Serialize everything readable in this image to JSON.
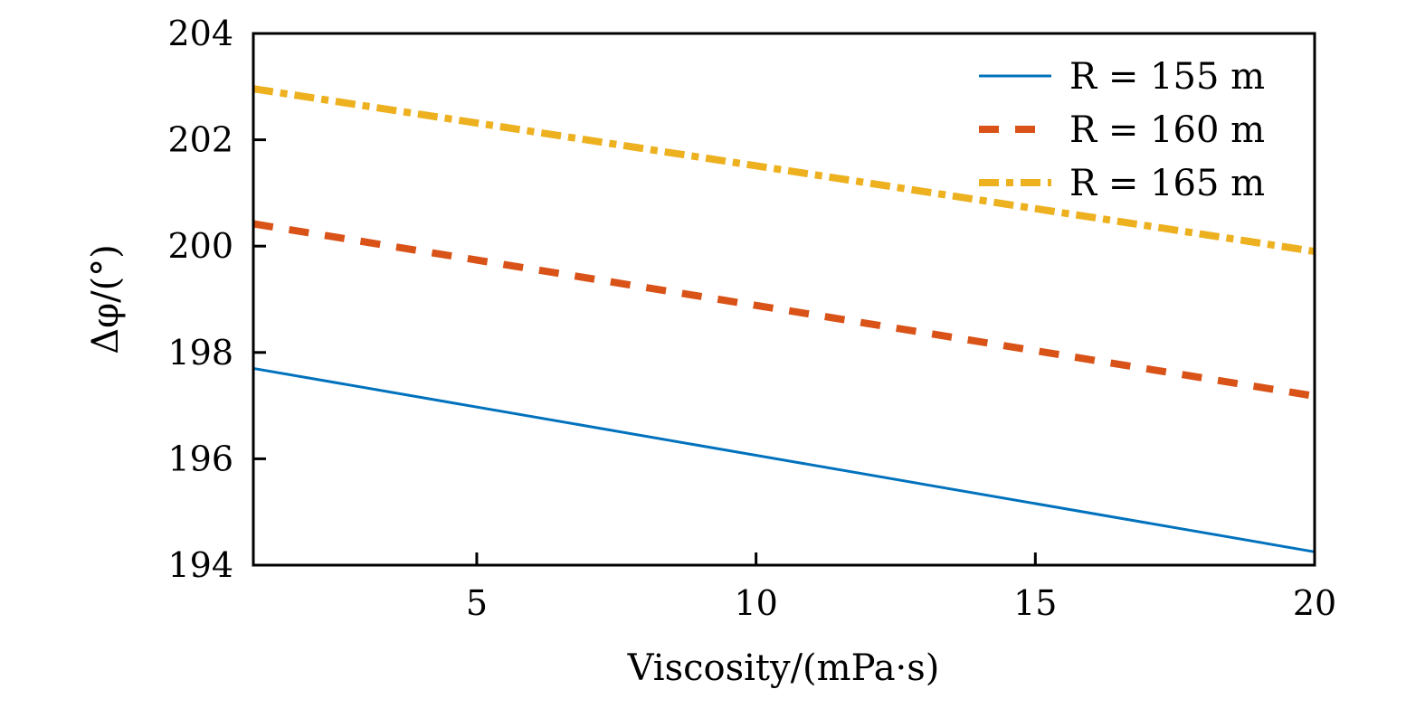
{
  "chart_data": {
    "type": "line",
    "title": "",
    "xlabel": "Viscosity/(mPa·s)",
    "ylabel": "Δφ/(°)",
    "xlim": [
      1,
      20
    ],
    "ylim": [
      194,
      204
    ],
    "xticks": [
      5,
      10,
      15,
      20
    ],
    "yticks": [
      194,
      196,
      198,
      200,
      202,
      204
    ],
    "grid": false,
    "legend_position": "top-right",
    "series": [
      {
        "name": "R = 155 m",
        "color": "#0072BD",
        "style": "solid",
        "x": [
          1,
          20
        ],
        "y": [
          197.7,
          194.25
        ]
      },
      {
        "name": "R = 160 m",
        "color": "#D95319",
        "style": "dashed",
        "x": [
          1,
          20
        ],
        "y": [
          200.42,
          197.18
        ]
      },
      {
        "name": "R = 165 m",
        "color": "#EDB120",
        "style": "dashdot",
        "x": [
          1,
          20
        ],
        "y": [
          202.96,
          199.9
        ]
      }
    ]
  }
}
